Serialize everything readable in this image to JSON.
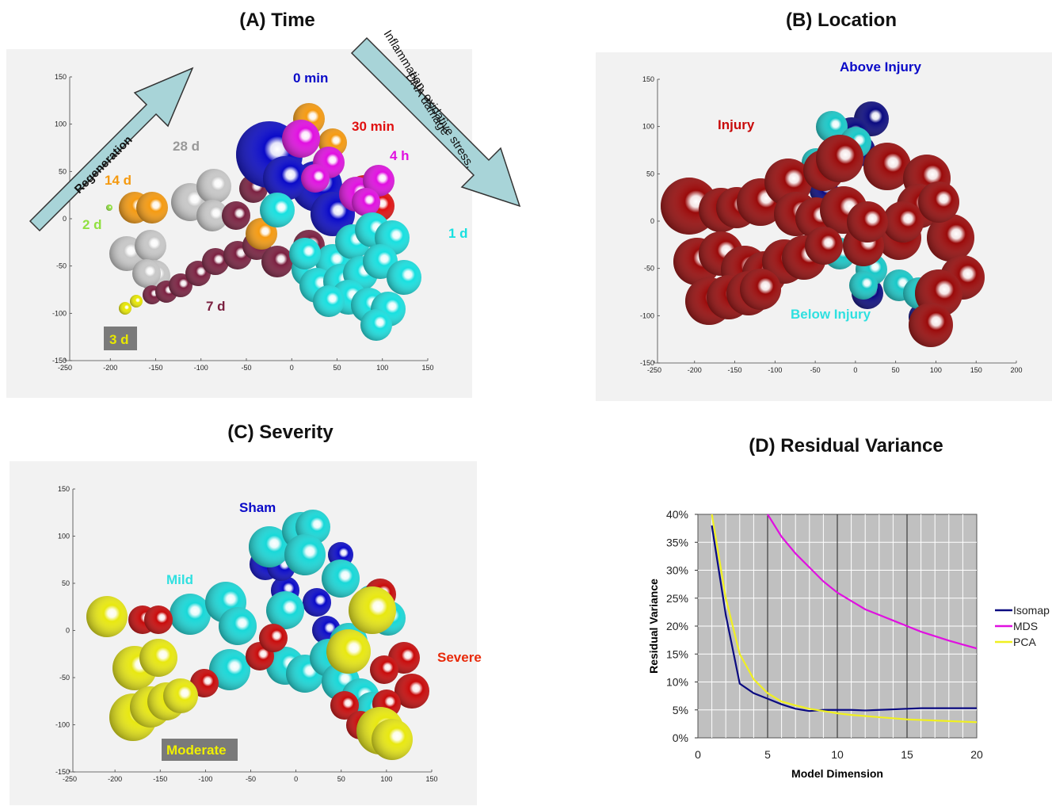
{
  "panels": {
    "a_title": "(A) Time",
    "b_title": "(B) Location",
    "c_title": "(C) Severity",
    "d_title": "(D) Residual Variance"
  },
  "panel_a": {
    "labels": {
      "t0": "0 min",
      "t30": "30 min",
      "t4h": "4 h",
      "t1d": "1 d",
      "t28d": "28 d",
      "t14d": "14 d",
      "t2d": "2 d",
      "t7d": "7 d",
      "t3d": "3 d"
    },
    "arrow_regen": "Regeneration",
    "arrow_inflam_1": "Inflammation, oxidative stress,",
    "arrow_inflam_2": "DNA damage",
    "colors": {
      "0 min": "#0a0ac8",
      "30 min": "#e01010",
      "4 h": "#e010e0",
      "1 d": "#18e0e0",
      "28 d": "#c8c8c8",
      "14 d": "#f59a10",
      "2 d": "#90e040",
      "7 d": "#7a2040",
      "3 d": "#e8e800"
    }
  },
  "panel_b": {
    "labels": {
      "above": "Above Injury",
      "injury": "Injury",
      "below": "Below Injury"
    },
    "colors": {
      "injury": "#9a0a0a",
      "above": "#0a0a80",
      "below": "#18c8c8"
    }
  },
  "panel_c": {
    "labels": {
      "sham": "Sham",
      "mild": "Mild",
      "severe": "Severe",
      "moderate": "Moderate"
    },
    "colors": {
      "sham": "#0a0ac8",
      "mild": "#18d8d8",
      "severe": "#c80a0a",
      "moderate": "#e8e810"
    }
  },
  "scatter_axes": {
    "a": {
      "x_ticks": [
        "-250",
        "-200",
        "-150",
        "-100",
        "-50",
        "0",
        "50",
        "100",
        "150"
      ],
      "y_ticks": [
        "150",
        "100",
        "50",
        "0",
        "-50",
        "-100",
        "-150"
      ]
    },
    "b": {
      "x_ticks": [
        "-250",
        "-200",
        "-150",
        "-100",
        "-50",
        "0",
        "50",
        "100",
        "150",
        "200"
      ],
      "y_ticks": [
        "150",
        "100",
        "50",
        "0",
        "-50",
        "-100",
        "-150"
      ]
    },
    "c": {
      "x_ticks": [
        "-250",
        "-200",
        "-150",
        "-100",
        "-50",
        "0",
        "50",
        "100",
        "150"
      ],
      "y_ticks": [
        "150",
        "100",
        "50",
        "0",
        "-50",
        "-100",
        "-150"
      ]
    }
  },
  "chart_data": {
    "type": "line",
    "title": "(D) Residual Variance",
    "xlabel": "Model Dimension",
    "ylabel": "Residual Variance",
    "xlim": [
      0,
      20
    ],
    "ylim": [
      0,
      40
    ],
    "x_ticks": [
      "0",
      "5",
      "10",
      "15",
      "20"
    ],
    "y_ticks": [
      "0%",
      "5%",
      "10%",
      "15%",
      "20%",
      "25%",
      "30%",
      "35%",
      "40%"
    ],
    "legend_position": "right",
    "series": [
      {
        "name": "Isomap",
        "color": "#0a0a80",
        "x": [
          1,
          2,
          3,
          4,
          5,
          6,
          7,
          8,
          9,
          10,
          11,
          12,
          13,
          14,
          15,
          16,
          17,
          18,
          19,
          20
        ],
        "y": [
          38,
          22,
          9.7,
          8,
          7,
          6,
          5.2,
          4.8,
          5,
          5,
          5,
          4.9,
          5,
          5.1,
          5.2,
          5.3,
          5.3,
          5.3,
          5.3,
          5.3
        ]
      },
      {
        "name": "MDS",
        "color": "#e010e0",
        "x": [
          5,
          6,
          7,
          8,
          9,
          10,
          11,
          12,
          13,
          14,
          15,
          16,
          17,
          18,
          19,
          20
        ],
        "y": [
          40,
          36,
          33,
          30.5,
          28,
          26,
          24.5,
          23,
          22,
          21,
          20,
          19,
          18.2,
          17.4,
          16.7,
          16
        ]
      },
      {
        "name": "PCA",
        "color": "#f0f020",
        "x": [
          1,
          2,
          3,
          4,
          5,
          6,
          7,
          8,
          9,
          10,
          11,
          12,
          13,
          14,
          15,
          16,
          17,
          18,
          19,
          20
        ],
        "y": [
          40,
          25,
          15,
          10.5,
          8,
          6.5,
          5.8,
          5.2,
          4.8,
          4.4,
          4.1,
          3.9,
          3.7,
          3.5,
          3.3,
          3.2,
          3.1,
          3.0,
          2.9,
          2.8
        ]
      }
    ]
  }
}
